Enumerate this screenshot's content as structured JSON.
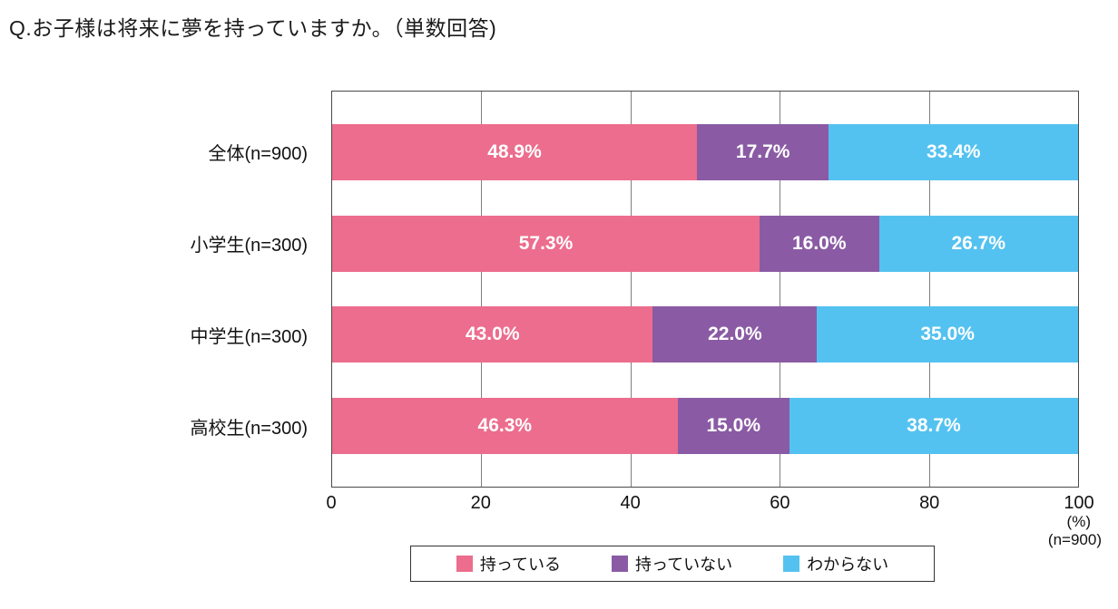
{
  "title": "Q.お子様は将来に夢を持っていますか。（単数回答)",
  "chart_data": {
    "type": "bar",
    "orientation": "horizontal",
    "stacked": true,
    "title": "Q.お子様は将来に夢を持っていますか。（単数回答)",
    "categories": [
      "全体(n=900)",
      "小学生(n=300)",
      "中学生(n=300)",
      "高校生(n=300)"
    ],
    "series": [
      {
        "name": "持っている",
        "color": "#ec6d8d",
        "values": [
          48.9,
          57.3,
          43.0,
          46.3
        ]
      },
      {
        "name": "持っていない",
        "color": "#8a5ba4",
        "values": [
          17.7,
          16.0,
          22.0,
          15.0
        ]
      },
      {
        "name": "わからない",
        "color": "#54c2f0",
        "values": [
          33.4,
          26.7,
          35.0,
          38.7
        ]
      }
    ],
    "xlim": [
      0,
      100
    ],
    "x_ticks": [
      "0",
      "20",
      "40",
      "60",
      "80",
      "100"
    ],
    "x_unit_label": "(%)",
    "x_note": "(n=900)",
    "grid": true,
    "legend_position": "bottom",
    "value_suffix": "%"
  }
}
